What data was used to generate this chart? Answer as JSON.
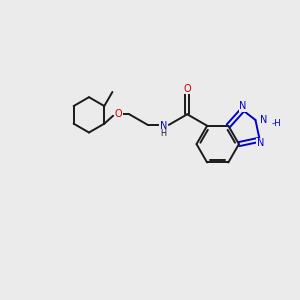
{
  "bg_color": "#ebebeb",
  "bond_color": "#1a1a1a",
  "nitrogen_color": "#0000cc",
  "oxygen_color": "#cc0000",
  "figsize": [
    3.0,
    3.0
  ],
  "dpi": 100,
  "xlim": [
    0,
    10
  ],
  "ylim": [
    0,
    10
  ]
}
